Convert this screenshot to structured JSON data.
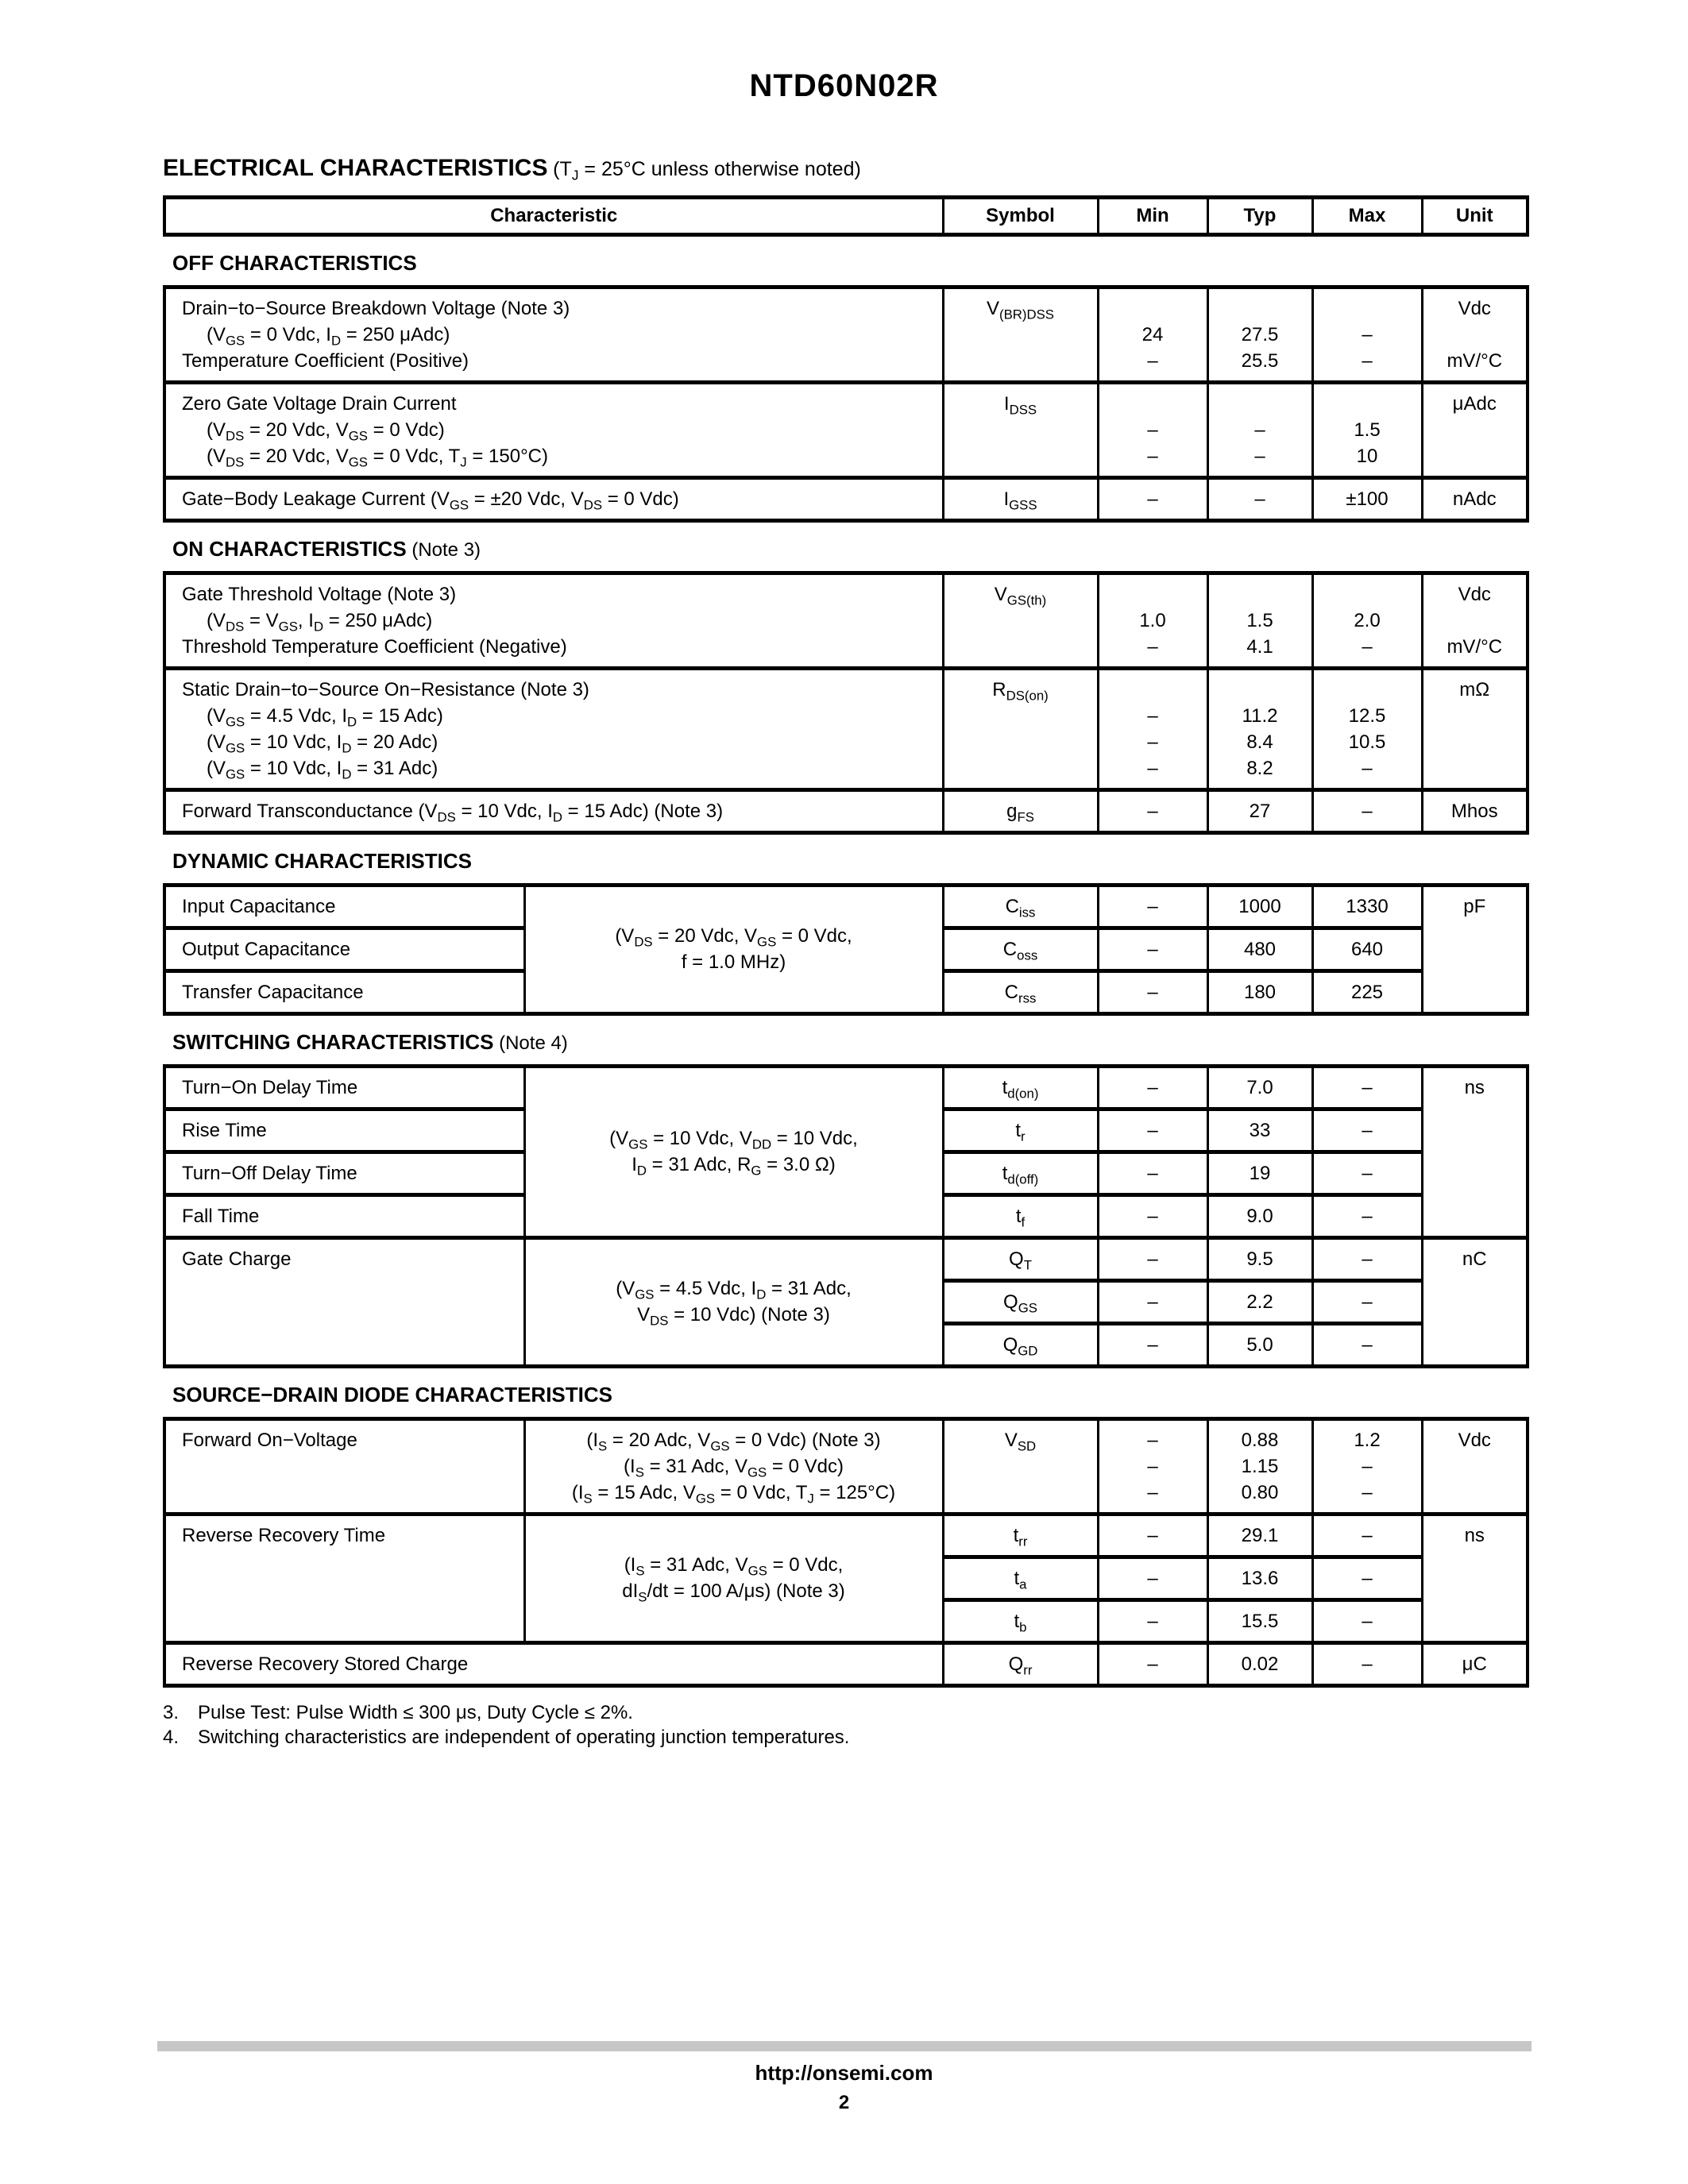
{
  "doc": {
    "title": "NTD60N02R",
    "heading": "ELECTRICAL CHARACTERISTICS",
    "heading_note": [
      [
        "t",
        "(T"
      ],
      [
        "s",
        "J"
      ],
      [
        "t",
        " = 25°C unless otherwise noted)"
      ]
    ],
    "columns": {
      "characteristic": "Characteristic",
      "symbol": "Symbol",
      "min": "Min",
      "typ": "Typ",
      "max": "Max",
      "unit": "Unit"
    },
    "off": {
      "label": "OFF CHARACTERISTICS",
      "r1": {
        "c1": [
          [
            "t",
            "Drain−to−Source Breakdown Voltage (Note 3)"
          ]
        ],
        "c2": [
          [
            "t",
            "(V"
          ],
          [
            "s",
            "GS"
          ],
          [
            "t",
            " = 0 Vdc, I"
          ],
          [
            "s",
            "D"
          ],
          [
            "t",
            " = 250 μAdc)"
          ]
        ],
        "c3": [
          [
            "t",
            "Temperature Coefficient (Positive)"
          ]
        ],
        "sym": [
          [
            "t",
            "V"
          ],
          [
            "s",
            "(BR)DSS"
          ]
        ],
        "min2": "24",
        "min3": "–",
        "typ2": "27.5",
        "typ3": "25.5",
        "max2": "–",
        "max3": "–",
        "u1": "Vdc",
        "u3": "mV/°C"
      },
      "r2": {
        "c1": [
          [
            "t",
            "Zero Gate Voltage Drain Current"
          ]
        ],
        "c2": [
          [
            "t",
            "(V"
          ],
          [
            "s",
            "DS"
          ],
          [
            "t",
            " = 20 Vdc, V"
          ],
          [
            "s",
            "GS"
          ],
          [
            "t",
            " = 0 Vdc)"
          ]
        ],
        "c3": [
          [
            "t",
            "(V"
          ],
          [
            "s",
            "DS"
          ],
          [
            "t",
            " = 20 Vdc, V"
          ],
          [
            "s",
            "GS"
          ],
          [
            "t",
            " = 0 Vdc, T"
          ],
          [
            "s",
            "J"
          ],
          [
            "t",
            " = 150°C)"
          ]
        ],
        "sym": [
          [
            "t",
            "I"
          ],
          [
            "s",
            "DSS"
          ]
        ],
        "min2": "–",
        "min3": "–",
        "typ2": "–",
        "typ3": "–",
        "max2": "1.5",
        "max3": "10",
        "u1": "μAdc"
      },
      "r3": {
        "c1": [
          [
            "t",
            "Gate−Body Leakage Current (V"
          ],
          [
            "s",
            "GS"
          ],
          [
            "t",
            " = ±20 Vdc, V"
          ],
          [
            "s",
            "DS"
          ],
          [
            "t",
            " = 0 Vdc)"
          ]
        ],
        "sym": [
          [
            "t",
            "I"
          ],
          [
            "s",
            "GSS"
          ]
        ],
        "min": "–",
        "typ": "–",
        "max": "±100",
        "unit": "nAdc"
      }
    },
    "on": {
      "label": "ON CHARACTERISTICS",
      "label_note": " (Note 3)",
      "r1": {
        "c1": [
          [
            "t",
            "Gate Threshold Voltage (Note 3)"
          ]
        ],
        "c2": [
          [
            "t",
            "(V"
          ],
          [
            "s",
            "DS"
          ],
          [
            "t",
            " = V"
          ],
          [
            "s",
            "GS"
          ],
          [
            "t",
            ", I"
          ],
          [
            "s",
            "D"
          ],
          [
            "t",
            " = 250 μAdc)"
          ]
        ],
        "c3": [
          [
            "t",
            "Threshold Temperature Coefficient (Negative)"
          ]
        ],
        "sym": [
          [
            "t",
            "V"
          ],
          [
            "s",
            "GS(th)"
          ]
        ],
        "min2": "1.0",
        "min3": "–",
        "typ2": "1.5",
        "typ3": "4.1",
        "max2": "2.0",
        "max3": "–",
        "u1": "Vdc",
        "u3": "mV/°C"
      },
      "r2": {
        "c1": [
          [
            "t",
            "Static Drain−to−Source On−Resistance (Note 3)"
          ]
        ],
        "c2": [
          [
            "t",
            "(V"
          ],
          [
            "s",
            "GS"
          ],
          [
            "t",
            " = 4.5 Vdc, I"
          ],
          [
            "s",
            "D"
          ],
          [
            "t",
            " = 15 Adc)"
          ]
        ],
        "c3": [
          [
            "t",
            "(V"
          ],
          [
            "s",
            "GS"
          ],
          [
            "t",
            " = 10 Vdc, I"
          ],
          [
            "s",
            "D"
          ],
          [
            "t",
            " = 20 Adc)"
          ]
        ],
        "c4": [
          [
            "t",
            "(V"
          ],
          [
            "s",
            "GS"
          ],
          [
            "t",
            " = 10 Vdc, I"
          ],
          [
            "s",
            "D"
          ],
          [
            "t",
            " = 31 Adc)"
          ]
        ],
        "sym": [
          [
            "t",
            "R"
          ],
          [
            "s",
            "DS(on)"
          ]
        ],
        "min2": "–",
        "min3": "–",
        "min4": "–",
        "typ2": "11.2",
        "typ3": "8.4",
        "typ4": "8.2",
        "max2": "12.5",
        "max3": "10.5",
        "max4": "–",
        "u1": "mΩ"
      },
      "r3": {
        "c1": [
          [
            "t",
            "Forward Transconductance (V"
          ],
          [
            "s",
            "DS"
          ],
          [
            "t",
            " = 10 Vdc, I"
          ],
          [
            "s",
            "D"
          ],
          [
            "t",
            " = 15 Adc) (Note 3)"
          ]
        ],
        "sym": [
          [
            "t",
            "g"
          ],
          [
            "s",
            "FS"
          ]
        ],
        "min": "–",
        "typ": "27",
        "max": "–",
        "unit": "Mhos"
      }
    },
    "dyn": {
      "label": "DYNAMIC CHARACTERISTICS",
      "cond1": [
        [
          "t",
          "(V"
        ],
        [
          "s",
          "DS"
        ],
        [
          "t",
          " = 20 Vdc, V"
        ],
        [
          "s",
          "GS"
        ],
        [
          "t",
          " = 0 Vdc,"
        ]
      ],
      "cond2": [
        [
          "t",
          "f = 1.0 MHz)"
        ]
      ],
      "unit": "pF",
      "r1": {
        "name": [
          [
            "t",
            "Input Capacitance"
          ]
        ],
        "sym": [
          [
            "t",
            "C"
          ],
          [
            "s",
            "iss"
          ]
        ],
        "min": "–",
        "typ": "1000",
        "max": "1330"
      },
      "r2": {
        "name": [
          [
            "t",
            "Output Capacitance"
          ]
        ],
        "sym": [
          [
            "t",
            "C"
          ],
          [
            "s",
            "oss"
          ]
        ],
        "min": "–",
        "typ": "480",
        "max": "640"
      },
      "r3": {
        "name": [
          [
            "t",
            "Transfer Capacitance"
          ]
        ],
        "sym": [
          [
            "t",
            "C"
          ],
          [
            "s",
            "rss"
          ]
        ],
        "min": "–",
        "typ": "180",
        "max": "225"
      }
    },
    "sw": {
      "label": "SWITCHING CHARACTERISTICS",
      "label_note": " (Note 4)",
      "cond1a": [
        [
          "t",
          "(V"
        ],
        [
          "s",
          "GS"
        ],
        [
          "t",
          " = 10 Vdc, V"
        ],
        [
          "s",
          "DD"
        ],
        [
          "t",
          " = 10 Vdc,"
        ]
      ],
      "cond1b": [
        [
          "t",
          "I"
        ],
        [
          "s",
          "D"
        ],
        [
          "t",
          " = 31 Adc, R"
        ],
        [
          "s",
          "G"
        ],
        [
          "t",
          " = 3.0 Ω)"
        ]
      ],
      "unit1": "ns",
      "r1": {
        "name": [
          [
            "t",
            "Turn−On Delay Time"
          ]
        ],
        "sym": [
          [
            "t",
            "t"
          ],
          [
            "s",
            "d(on)"
          ]
        ],
        "min": "–",
        "typ": "7.0",
        "max": "–"
      },
      "r2": {
        "name": [
          [
            "t",
            "Rise Time"
          ]
        ],
        "sym": [
          [
            "t",
            "t"
          ],
          [
            "s",
            "r"
          ]
        ],
        "min": "–",
        "typ": "33",
        "max": "–"
      },
      "r3": {
        "name": [
          [
            "t",
            "Turn−Off Delay Time"
          ]
        ],
        "sym": [
          [
            "t",
            "t"
          ],
          [
            "s",
            "d(off)"
          ]
        ],
        "min": "–",
        "typ": "19",
        "max": "–"
      },
      "r4": {
        "name": [
          [
            "t",
            "Fall Time"
          ]
        ],
        "sym": [
          [
            "t",
            "t"
          ],
          [
            "s",
            "f"
          ]
        ],
        "min": "–",
        "typ": "9.0",
        "max": "–"
      },
      "gate_name": [
        [
          "t",
          "Gate Charge"
        ]
      ],
      "cond2a": [
        [
          "t",
          "(V"
        ],
        [
          "s",
          "GS"
        ],
        [
          "t",
          " = 4.5 Vdc, I"
        ],
        [
          "s",
          "D"
        ],
        [
          "t",
          " = 31 Adc,"
        ]
      ],
      "cond2b": [
        [
          "t",
          "V"
        ],
        [
          "s",
          "DS"
        ],
        [
          "t",
          " = 10 Vdc) (Note 3)"
        ]
      ],
      "unit2": "nC",
      "r5": {
        "sym": [
          [
            "t",
            "Q"
          ],
          [
            "s",
            "T"
          ]
        ],
        "min": "–",
        "typ": "9.5",
        "max": "–"
      },
      "r6": {
        "sym": [
          [
            "t",
            "Q"
          ],
          [
            "s",
            "GS"
          ]
        ],
        "min": "–",
        "typ": "2.2",
        "max": "–"
      },
      "r7": {
        "sym": [
          [
            "t",
            "Q"
          ],
          [
            "s",
            "GD"
          ]
        ],
        "min": "–",
        "typ": "5.0",
        "max": "–"
      }
    },
    "diode": {
      "label": "SOURCE−DRAIN DIODE CHARACTERISTICS",
      "r1": {
        "name": [
          [
            "t",
            "Forward On−Voltage"
          ]
        ],
        "c1": [
          [
            "t",
            "(I"
          ],
          [
            "s",
            "S"
          ],
          [
            "t",
            " = 20 Adc, V"
          ],
          [
            "s",
            "GS"
          ],
          [
            "t",
            " = 0 Vdc) (Note 3)"
          ]
        ],
        "c2": [
          [
            "t",
            "(I"
          ],
          [
            "s",
            "S"
          ],
          [
            "t",
            " = 31 Adc, V"
          ],
          [
            "s",
            "GS"
          ],
          [
            "t",
            " = 0 Vdc)"
          ]
        ],
        "c3": [
          [
            "t",
            "(I"
          ],
          [
            "s",
            "S"
          ],
          [
            "t",
            " = 15 Adc, V"
          ],
          [
            "s",
            "GS"
          ],
          [
            "t",
            " = 0 Vdc, T"
          ],
          [
            "s",
            "J"
          ],
          [
            "t",
            " = 125°C)"
          ]
        ],
        "sym": [
          [
            "t",
            "V"
          ],
          [
            "s",
            "SD"
          ]
        ],
        "min1": "–",
        "min2": "–",
        "min3": "–",
        "typ1": "0.88",
        "typ2": "1.15",
        "typ3": "0.80",
        "max1": "1.2",
        "max2": "–",
        "max3": "–",
        "u1": "Vdc"
      },
      "rr_name": [
        [
          "t",
          "Reverse Recovery Time"
        ]
      ],
      "cond2a": [
        [
          "t",
          "(I"
        ],
        [
          "s",
          "S"
        ],
        [
          "t",
          " = 31 Adc, V"
        ],
        [
          "s",
          "GS"
        ],
        [
          "t",
          " = 0 Vdc,"
        ]
      ],
      "cond2b": [
        [
          "t",
          "dI"
        ],
        [
          "s",
          "S"
        ],
        [
          "t",
          "/dt = 100 A/μs) (Note 3)"
        ]
      ],
      "unit2": "ns",
      "r2": {
        "sym": [
          [
            "t",
            "t"
          ],
          [
            "s",
            "rr"
          ]
        ],
        "min": "–",
        "typ": "29.1",
        "max": "–"
      },
      "r3": {
        "sym": [
          [
            "t",
            "t"
          ],
          [
            "s",
            "a"
          ]
        ],
        "min": "–",
        "typ": "13.6",
        "max": "–"
      },
      "r4": {
        "sym": [
          [
            "t",
            "t"
          ],
          [
            "s",
            "b"
          ]
        ],
        "min": "–",
        "typ": "15.5",
        "max": "–"
      },
      "r5": {
        "c1": [
          [
            "t",
            "Reverse Recovery Stored Charge"
          ]
        ],
        "sym": [
          [
            "t",
            "Q"
          ],
          [
            "s",
            "rr"
          ]
        ],
        "min": "–",
        "typ": "0.02",
        "max": "–",
        "unit": "μC"
      }
    },
    "notes": {
      "n3_num": "3.",
      "n3": [
        [
          "t",
          "Pulse Test: Pulse Width ≤ 300 μs, Duty Cycle ≤ 2%."
        ]
      ],
      "n4_num": "4.",
      "n4": [
        [
          "t",
          "Switching characteristics are independent of operating junction temperatures."
        ]
      ]
    },
    "footer": {
      "url": "http://onsemi.com",
      "page_number": "2"
    }
  }
}
